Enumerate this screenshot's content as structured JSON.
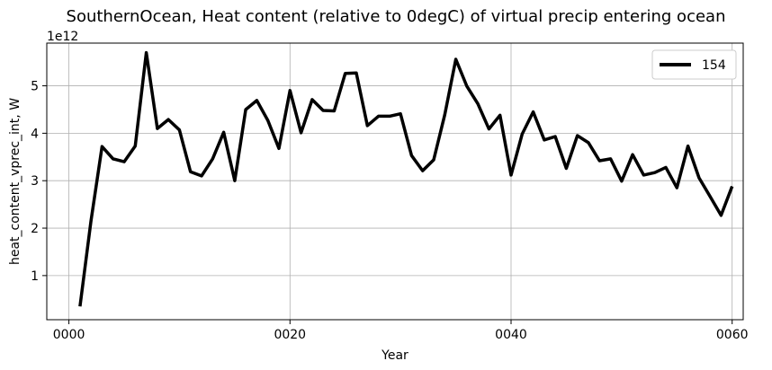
{
  "chart_data": {
    "type": "line",
    "title": "SouthernOcean, Heat content (relative to 0degC) of virtual precip entering ocean",
    "xlabel": "Year",
    "ylabel": "heat_content_vprec_int, W",
    "y_offset_label": "1e12",
    "xlim": [
      -2,
      61
    ],
    "ylim": [
      0.07,
      5.9
    ],
    "x_ticks": [
      0,
      20,
      40,
      60
    ],
    "x_tick_labels": [
      "0000",
      "0020",
      "0040",
      "0060"
    ],
    "y_ticks": [
      1,
      2,
      3,
      4,
      5
    ],
    "y_tick_labels": [
      "1",
      "2",
      "3",
      "4",
      "5"
    ],
    "grid": true,
    "legend_position": "top-right",
    "series": [
      {
        "name": "154",
        "color": "#000000",
        "x": [
          1,
          2,
          3,
          4,
          5,
          6,
          7,
          8,
          9,
          10,
          11,
          12,
          13,
          14,
          15,
          16,
          17,
          18,
          19,
          20,
          21,
          22,
          23,
          24,
          25,
          26,
          27,
          28,
          29,
          30,
          31,
          32,
          33,
          34,
          35,
          36,
          37,
          38,
          39,
          40,
          41,
          42,
          43,
          44,
          45,
          46,
          47,
          48,
          49,
          50,
          51,
          52,
          53,
          54,
          55,
          56,
          57,
          58,
          59,
          60
        ],
        "values": [
          0.35,
          2.15,
          3.72,
          3.46,
          3.4,
          3.73,
          5.7,
          4.1,
          4.29,
          4.07,
          3.19,
          3.1,
          3.46,
          4.02,
          3.0,
          4.5,
          4.69,
          4.27,
          3.68,
          4.9,
          4.01,
          4.71,
          4.48,
          4.47,
          5.26,
          5.27,
          4.16,
          4.36,
          4.36,
          4.41,
          3.53,
          3.21,
          3.44,
          4.39,
          5.56,
          4.99,
          4.62,
          4.09,
          4.38,
          3.12,
          3.98,
          4.45,
          3.86,
          3.93,
          3.26,
          3.95,
          3.8,
          3.42,
          3.46,
          2.99,
          3.55,
          3.12,
          3.17,
          3.28,
          2.85,
          3.73,
          3.06,
          2.67,
          2.27,
          2.88
        ]
      }
    ]
  }
}
